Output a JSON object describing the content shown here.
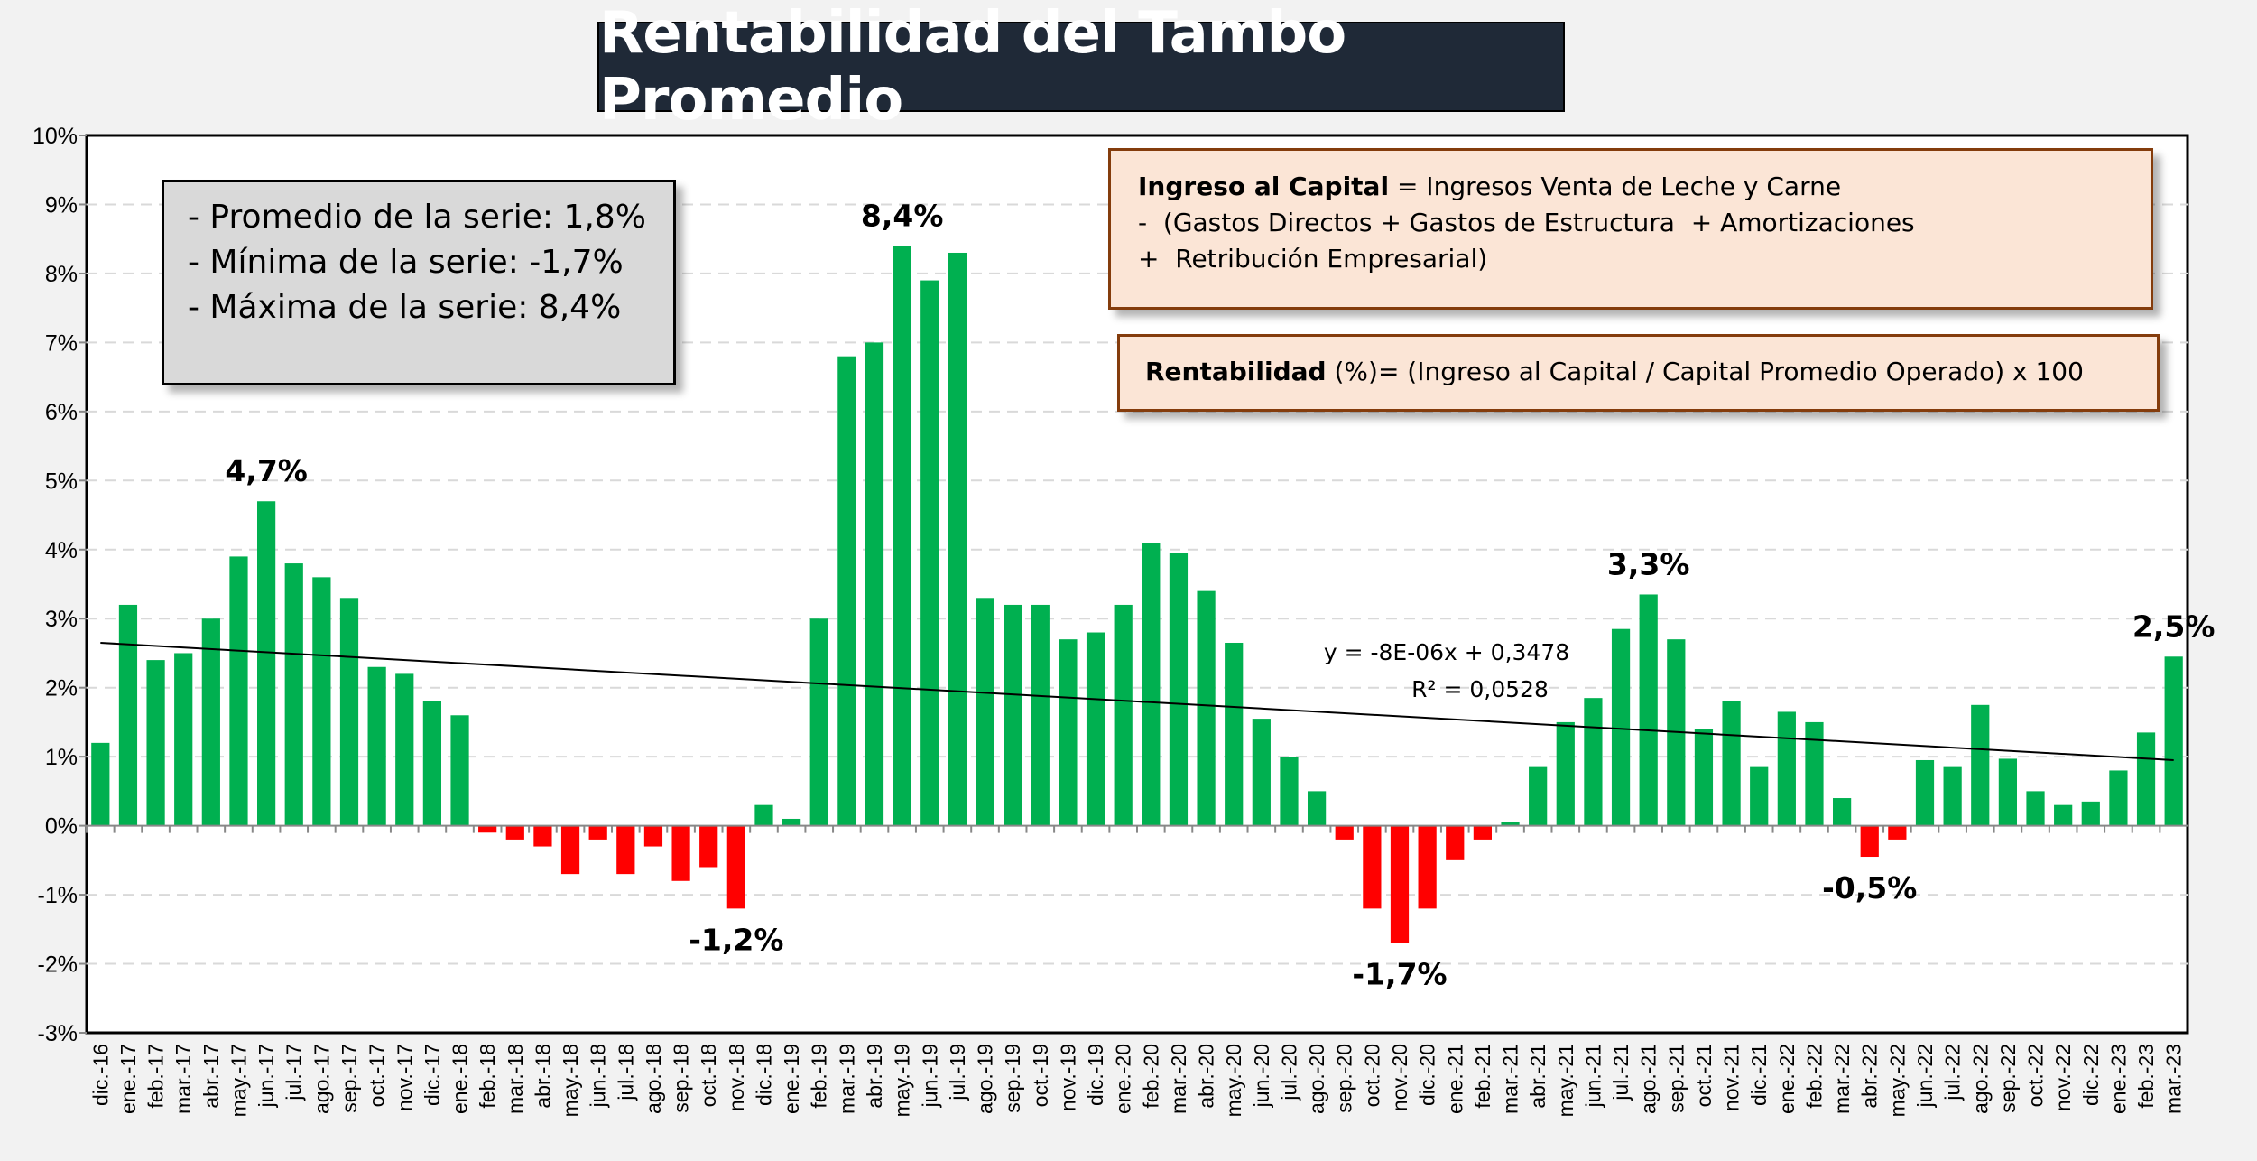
{
  "chart_data": {
    "type": "bar",
    "title": "Rentabilidad del Tambo Promedio",
    "xlabel": "",
    "ylabel": "",
    "ylim": [
      -3,
      10
    ],
    "yticks": [
      "10%",
      "9%",
      "8%",
      "7%",
      "6%",
      "5%",
      "4%",
      "3%",
      "2%",
      "1%",
      "0%",
      "-1%",
      "-2%",
      "-3%"
    ],
    "grid": "horizontal dashed",
    "colors": {
      "positive": "#00b050",
      "negative": "#ff0000",
      "trend": "#000000"
    },
    "categories": [
      "dic.-16",
      "ene.-17",
      "feb.-17",
      "mar.-17",
      "abr.-17",
      "may.-17",
      "jun.-17",
      "jul.-17",
      "ago.-17",
      "sep.-17",
      "oct.-17",
      "nov.-17",
      "dic.-17",
      "ene.-18",
      "feb.-18",
      "mar.-18",
      "abr.-18",
      "may.-18",
      "jun.-18",
      "jul.-18",
      "ago.-18",
      "sep.-18",
      "oct.-18",
      "nov.-18",
      "dic.-18",
      "ene.-19",
      "feb.-19",
      "mar.-19",
      "abr.-19",
      "may.-19",
      "jun.-19",
      "jul.-19",
      "ago.-19",
      "sep.-19",
      "oct.-19",
      "nov.-19",
      "dic.-19",
      "ene.-20",
      "feb.-20",
      "mar.-20",
      "abr.-20",
      "may.-20",
      "jun.-20",
      "jul.-20",
      "ago.-20",
      "sep.-20",
      "oct.-20",
      "nov.-20",
      "dic.-20",
      "ene.-21",
      "feb.-21",
      "mar.-21",
      "abr.-21",
      "may.-21",
      "jun.-21",
      "jul.-21",
      "ago.-21",
      "sep.-21",
      "oct.-21",
      "nov.-21",
      "dic.-21",
      "ene.-22",
      "feb.-22",
      "mar.-22",
      "abr.-22",
      "may.-22",
      "jun.-22",
      "jul.-22",
      "ago.-22",
      "sep.-22",
      "oct.-22",
      "nov.-22",
      "dic.-22",
      "ene.-23",
      "feb.-23",
      "mar.-23"
    ],
    "values": [
      1.2,
      3.2,
      2.4,
      2.5,
      3.0,
      3.9,
      4.7,
      3.8,
      3.6,
      3.3,
      2.3,
      2.2,
      1.8,
      1.6,
      -0.1,
      -0.2,
      -0.3,
      -0.7,
      -0.2,
      -0.7,
      -0.3,
      -0.8,
      -0.6,
      -1.2,
      0.3,
      0.1,
      3.0,
      6.8,
      7.0,
      8.4,
      7.9,
      8.3,
      3.3,
      3.2,
      3.2,
      2.7,
      2.8,
      3.2,
      4.1,
      3.95,
      3.4,
      2.65,
      1.55,
      1.0,
      0.5,
      -0.2,
      -1.2,
      -1.7,
      -1.2,
      -0.5,
      -0.2,
      0.05,
      0.85,
      1.5,
      1.85,
      2.85,
      3.35,
      2.7,
      1.4,
      1.8,
      0.85,
      1.65,
      1.5,
      0.4,
      -0.45,
      -0.2,
      0.95,
      0.85,
      1.75,
      0.97,
      0.5,
      0.3,
      0.35,
      0.8,
      1.35,
      2.45
    ],
    "trendline": {
      "start": 2.65,
      "end": 0.95,
      "equation": "y = -8E-06x + 0,3478",
      "r2": "R² = 0,0528"
    },
    "annotations": [
      {
        "index": 6,
        "label": "4,7%"
      },
      {
        "index": 29,
        "label": "8,4%"
      },
      {
        "index": 23,
        "label": "-1,2%"
      },
      {
        "index": 47,
        "label": "-1,7%"
      },
      {
        "index": 56,
        "label": "3,3%"
      },
      {
        "index": 64,
        "label": "-0,5%"
      },
      {
        "index": 75,
        "label": "2,5%"
      }
    ]
  },
  "stats": [
    "- Promedio de la serie: 1,8%",
    "- Mínima de la serie: -1,7%",
    "- Máxima de la serie: 8,4%"
  ],
  "definitions": {
    "ingreso_bold": "Ingreso al Capital",
    "ingreso_rest": " = Ingresos Venta de Leche y Carne",
    "line2": "-  (Gastos Directos + Gastos de Estructura  + Amortizaciones",
    "line3": "+  Retribución Empresarial)",
    "rent_bold": "Rentabilidad",
    "rent_rest": " (%)= (Ingreso al Capital / Capital Promedio Operado) x 100"
  }
}
